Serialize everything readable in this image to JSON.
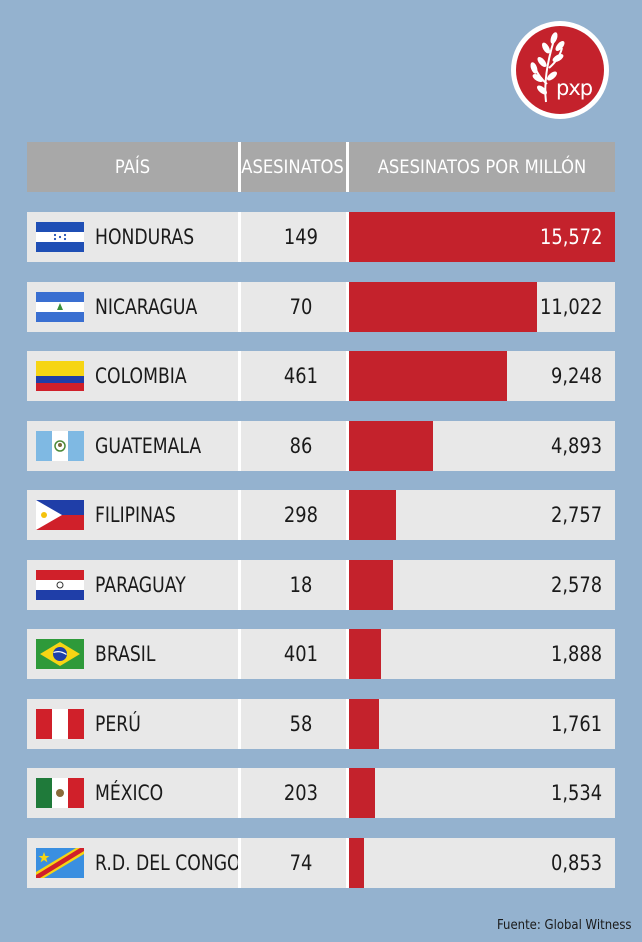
{
  "logo": {
    "text": "pxp",
    "accent_color": "#c4222c"
  },
  "header": {
    "col_country": "PAÍS",
    "col_murders": "ASESINATOS",
    "col_rate": "ASESINATOS POR MILLÓN"
  },
  "chart_data": {
    "type": "bar",
    "orientation": "horizontal",
    "categories": [
      "HONDURAS",
      "NICARAGUA",
      "COLOMBIA",
      "GUATEMALA",
      "FILIPINAS",
      "PARAGUAY",
      "BRASIL",
      "PERÚ",
      "MÉXICO",
      "R.D. DEL CONGO"
    ],
    "murders": [
      "149",
      "70",
      "461",
      "86",
      "298",
      "18",
      "401",
      "58",
      "203",
      "74"
    ],
    "value_labels": [
      "15,572",
      "11,022",
      "9,248",
      "4,893",
      "2,757",
      "2,578",
      "1,888",
      "1,761",
      "1,534",
      "0,853"
    ],
    "values": [
      15.572,
      11.022,
      9.248,
      4.893,
      2.757,
      2.578,
      1.888,
      1.761,
      1.534,
      0.853
    ],
    "xlim": [
      0,
      15.572
    ],
    "bar_color": "#c4222c",
    "flags": [
      "honduras-flag-icon",
      "nicaragua-flag-icon",
      "colombia-flag-icon",
      "guatemala-flag-icon",
      "philippines-flag-icon",
      "paraguay-flag-icon",
      "brazil-flag-icon",
      "peru-flag-icon",
      "mexico-flag-icon",
      "dr-congo-flag-icon"
    ]
  },
  "source": "Fuente: Global Witness"
}
